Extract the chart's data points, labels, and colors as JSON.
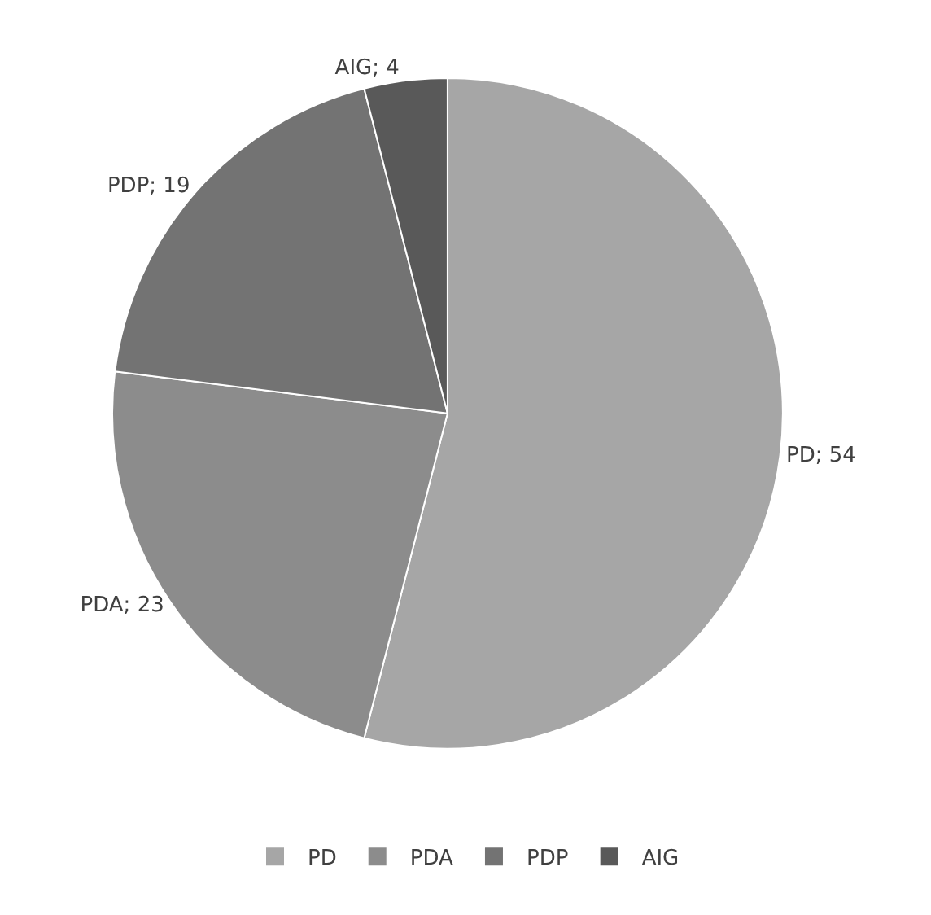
{
  "chart_data": {
    "type": "pie",
    "categories": [
      "PD",
      "PDA",
      "PDP",
      "AIG"
    ],
    "values": [
      54,
      23,
      19,
      4
    ],
    "colors": [
      "#a6a6a6",
      "#8c8c8c",
      "#737373",
      "#595959"
    ],
    "value_labels": [
      "PD; 54",
      "PDA; 23",
      "PDP; 19",
      "AIG; 4"
    ],
    "legend": "bottom"
  }
}
